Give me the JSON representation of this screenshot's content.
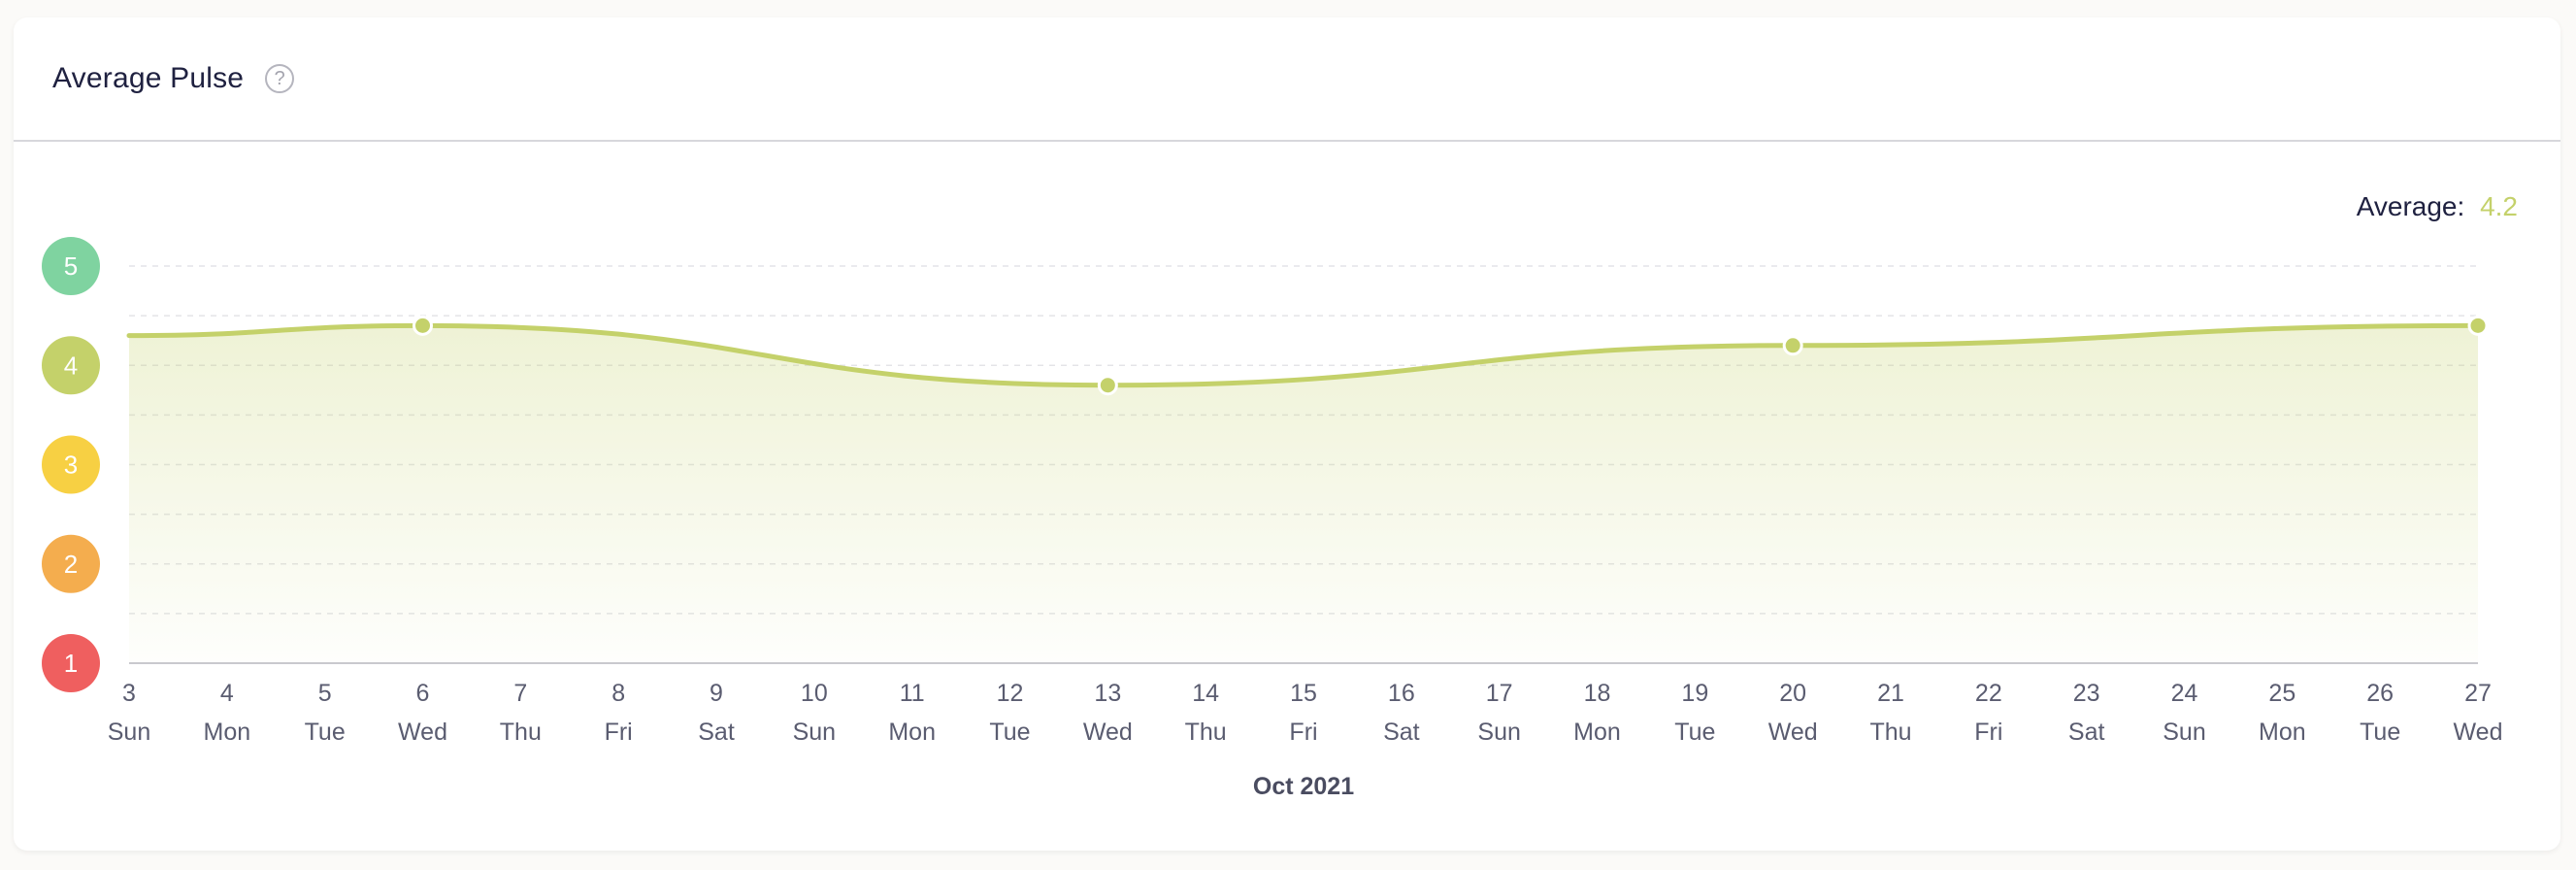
{
  "header": {
    "title": "Average Pulse",
    "help_icon": "question-circle-icon"
  },
  "summary": {
    "label": "Average:",
    "value": "4.2"
  },
  "colors": {
    "line": "#c4d16a",
    "score_5": "#7fd3a0",
    "score_4": "#c4d16a",
    "score_3": "#f7d043",
    "score_2": "#f4ad4e",
    "score_1": "#ef5f5f"
  },
  "chart_data": {
    "type": "area",
    "xlabel": "Oct 2021",
    "ylabel": "",
    "ylim": [
      1,
      5
    ],
    "y_ticks": [
      "1",
      "2",
      "3",
      "4",
      "5"
    ],
    "categories": [
      "3",
      "4",
      "5",
      "6",
      "7",
      "8",
      "9",
      "10",
      "11",
      "12",
      "13",
      "14",
      "15",
      "16",
      "17",
      "18",
      "19",
      "20",
      "21",
      "22",
      "23",
      "24",
      "25",
      "26",
      "27"
    ],
    "weekdays": [
      "Sun",
      "Mon",
      "Tue",
      "Wed",
      "Thu",
      "Fri",
      "Sat",
      "Sun",
      "Mon",
      "Tue",
      "Wed",
      "Thu",
      "Fri",
      "Sat",
      "Sun",
      "Mon",
      "Tue",
      "Wed",
      "Thu",
      "Fri",
      "Sat",
      "Sun",
      "Mon",
      "Tue",
      "Wed"
    ],
    "series": [
      {
        "points": [
          {
            "x": "6",
            "y": 4.4
          },
          {
            "x": "13",
            "y": 3.8
          },
          {
            "x": "20",
            "y": 4.2
          },
          {
            "x": "27",
            "y": 4.4
          }
        ]
      }
    ],
    "start_value": 4.3,
    "grid": true,
    "legend": "none"
  }
}
